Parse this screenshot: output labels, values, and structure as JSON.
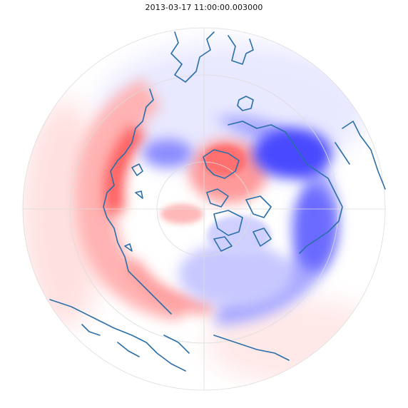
{
  "title": "2013-03-17 11:00:00.003000",
  "projection": "north-polar-stereographic",
  "field_colormap": [
    "blue (negative)",
    "white (zero)",
    "red (positive)"
  ],
  "colors": {
    "coastline": "#2a6fa8",
    "positive": "#ff4a4a",
    "negative": "#3a3aff",
    "gridline": "#dddddd",
    "background": "#ffffff"
  },
  "features": {
    "gridlines": true,
    "coastlines": true,
    "filled_contours": true
  }
}
